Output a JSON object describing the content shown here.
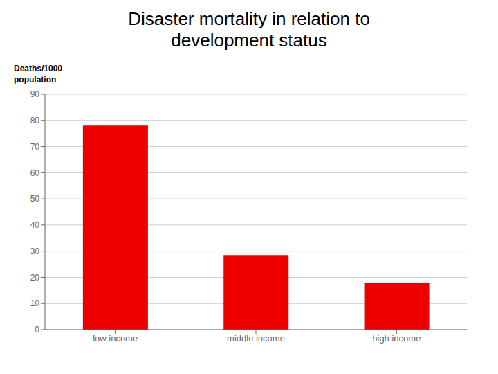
{
  "chart_data": {
    "type": "bar",
    "title": "Disaster mortality in relation to\ndevelopment status",
    "ylabel": "Deaths/1000\npopulation",
    "categories": [
      "low income",
      "middle income",
      "high income"
    ],
    "values": [
      78,
      28.5,
      18
    ],
    "color": "#ee0000",
    "ylim": [
      0,
      90
    ],
    "yticks": [
      0,
      10,
      20,
      30,
      40,
      50,
      60,
      70,
      80,
      90
    ],
    "grid": true
  }
}
